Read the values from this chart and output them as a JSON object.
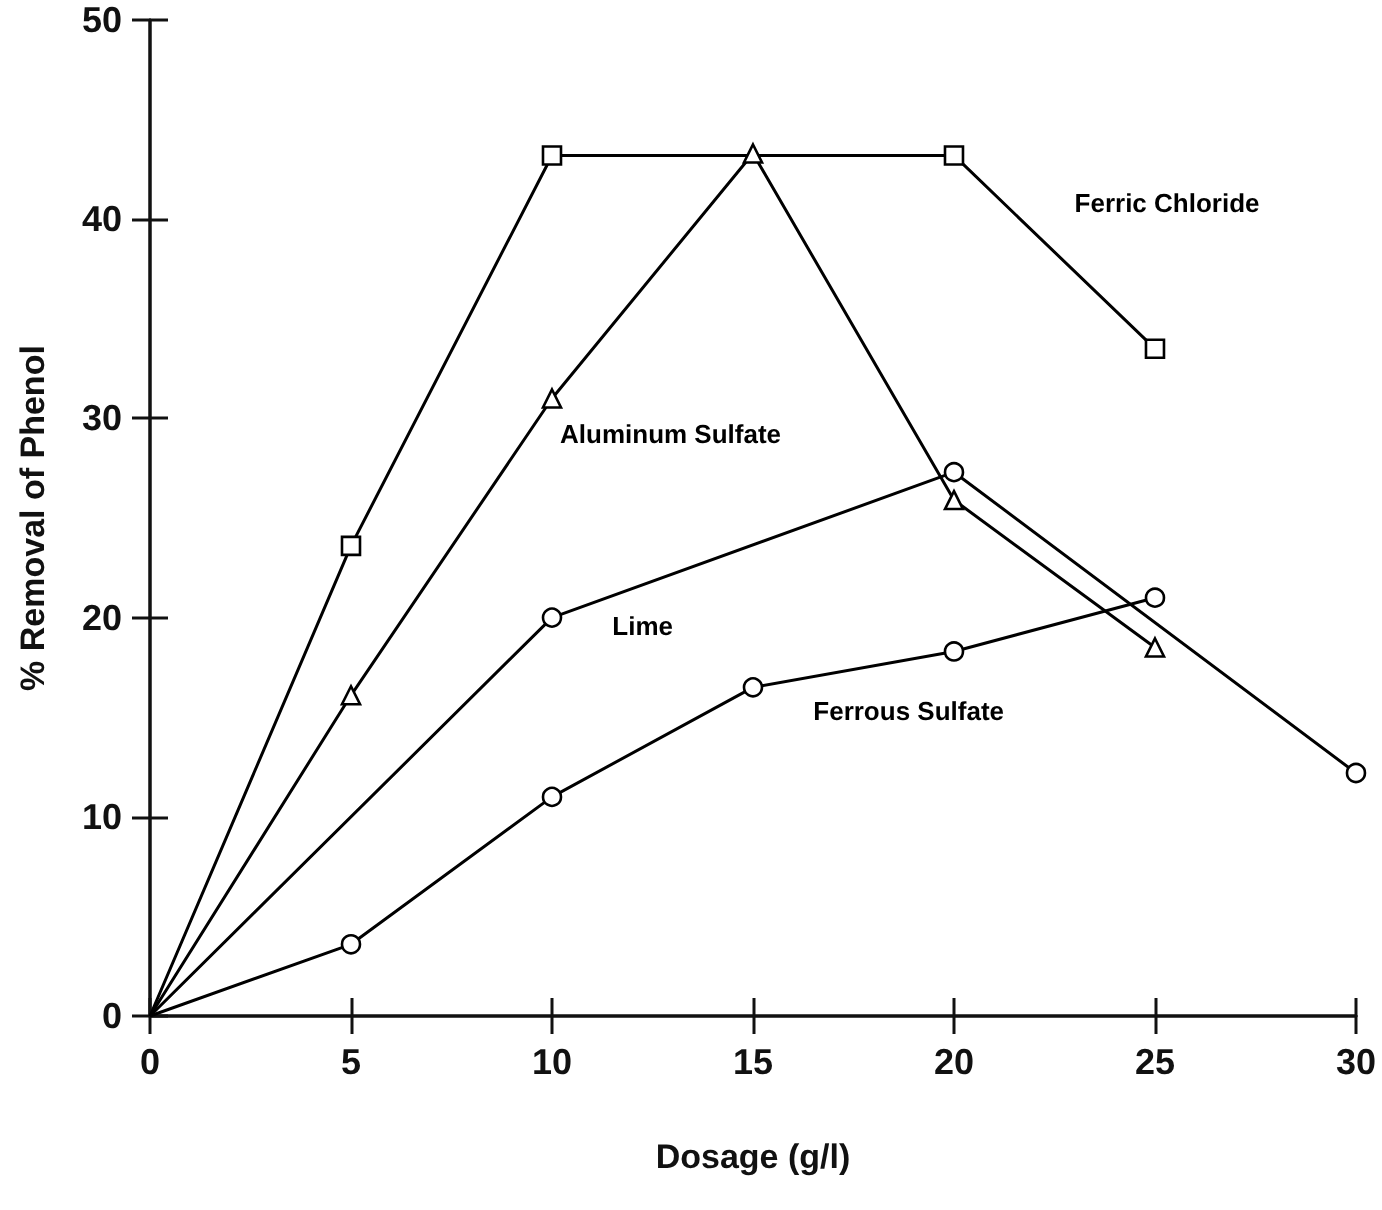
{
  "chart_data": {
    "type": "line",
    "xlabel": "Dosage (g/l)",
    "ylabel": "% Removal of Phenol",
    "xlim": [
      0,
      30
    ],
    "xticks": [
      0,
      5,
      10,
      15,
      20,
      25,
      30
    ],
    "ylim": [
      0,
      50
    ],
    "yticks": [
      0,
      10,
      20,
      30,
      40,
      50
    ],
    "grid": false,
    "legend": false,
    "line_style": "solid",
    "series": [
      {
        "name": "Ferric Chloride",
        "color": "#000000",
        "marker": "square",
        "x": [
          0,
          5,
          10,
          20,
          25
        ],
        "values": [
          0,
          23.6,
          43.2,
          43.2,
          33.5
        ]
      },
      {
        "name": "Aluminum Sulfate",
        "color": "#000000",
        "marker": "triangle",
        "x": [
          0,
          5,
          10,
          15,
          20,
          25
        ],
        "values": [
          0,
          16.1,
          31.0,
          43.3,
          25.9,
          18.5
        ]
      },
      {
        "name": "Lime",
        "color": "#000000",
        "marker": "circle",
        "x": [
          0,
          10,
          20,
          30
        ],
        "values": [
          0,
          20.0,
          27.3,
          12.2
        ]
      },
      {
        "name": "Ferrous Sulfate",
        "color": "#000000",
        "marker": "circle",
        "x": [
          0,
          5,
          10,
          15,
          20,
          25
        ],
        "values": [
          0,
          3.6,
          11.0,
          16.5,
          18.3,
          21.0
        ]
      }
    ]
  }
}
